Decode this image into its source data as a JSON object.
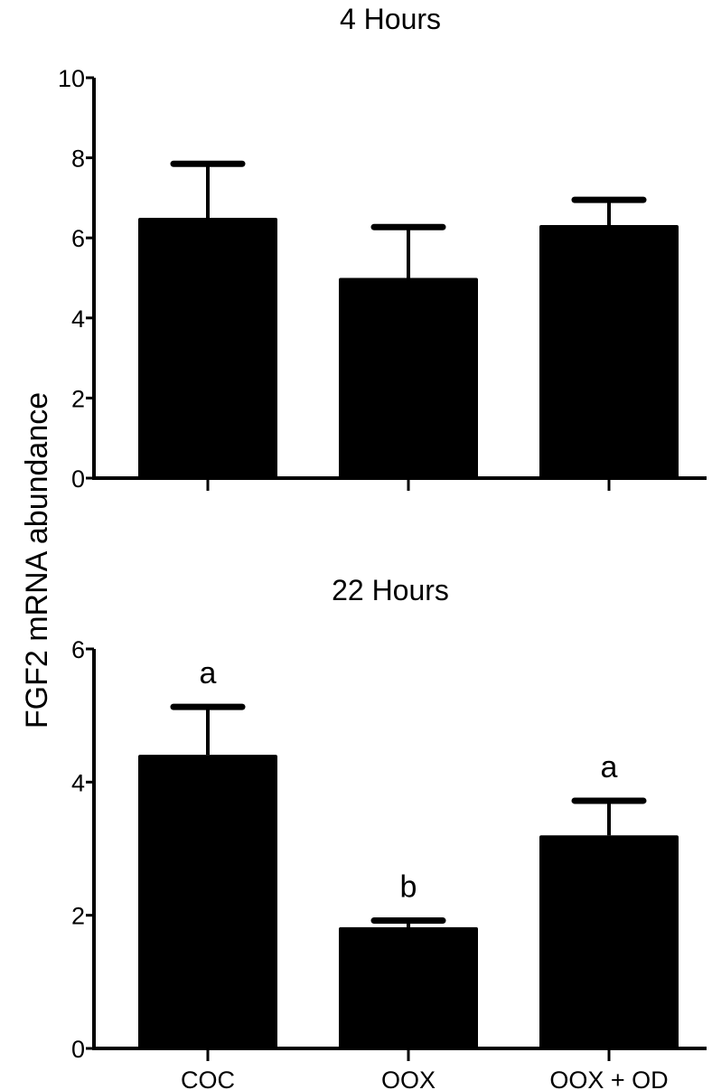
{
  "ylabel": "FGF2 mRNA abundance",
  "chart_data": [
    {
      "type": "bar",
      "title": "4 Hours",
      "categories": [
        "COC",
        "OOX",
        "OOX + OD"
      ],
      "show_category_labels": false,
      "values": [
        6.5,
        5.0,
        6.32
      ],
      "error_upper": [
        7.85,
        6.27,
        6.95
      ],
      "annotations": [],
      "ylim": [
        0,
        10
      ],
      "yticks": [
        0,
        2,
        4,
        6,
        8,
        10
      ],
      "ylabel": "FGF2 mRNA abundance",
      "grid": false,
      "bar_color": "#000000"
    },
    {
      "type": "bar",
      "title": "22 Hours",
      "categories": [
        "COC",
        "OOX",
        "OOX + OD"
      ],
      "show_category_labels": true,
      "values": [
        4.41,
        1.82,
        3.2
      ],
      "error_upper": [
        5.13,
        1.92,
        3.72
      ],
      "annotations": [
        "a",
        "b",
        "a"
      ],
      "ylim": [
        0,
        6
      ],
      "yticks": [
        0,
        2,
        4,
        6
      ],
      "ylabel": "FGF2 mRNA abundance",
      "grid": false,
      "bar_color": "#000000"
    }
  ]
}
